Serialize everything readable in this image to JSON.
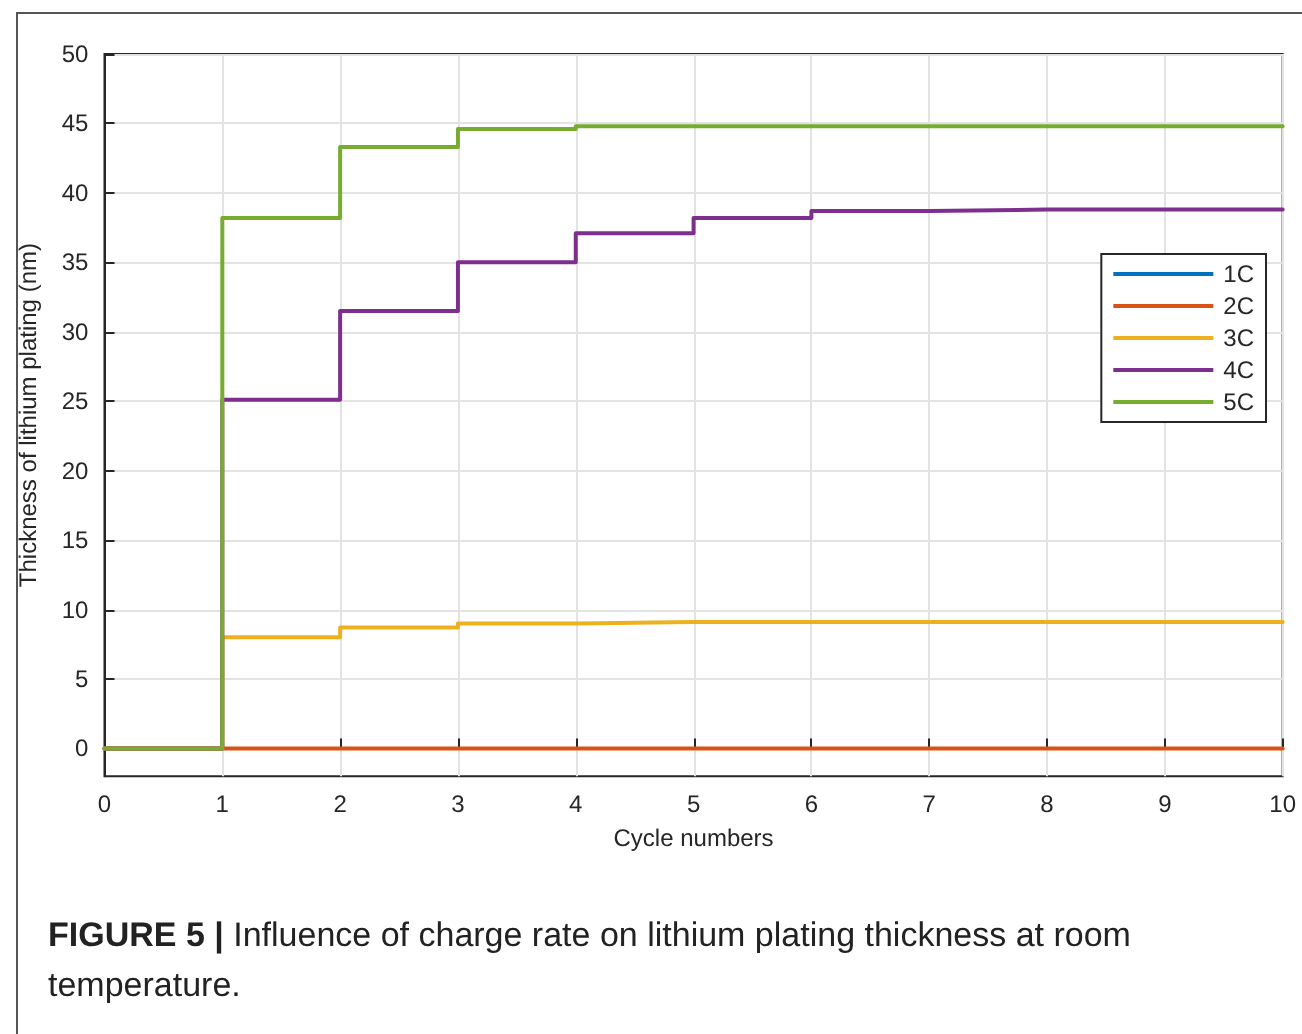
{
  "chart_data": {
    "type": "step",
    "xlabel": "Cycle numbers",
    "ylabel": "Thickness of lithium plating (nm)",
    "x": [
      0,
      1,
      2,
      3,
      4,
      5,
      6,
      7,
      8,
      9,
      10
    ],
    "series": [
      {
        "name": "1C",
        "color": "#0072bd",
        "values": [
          null,
          null,
          null,
          null,
          null,
          null,
          null,
          null,
          null,
          null,
          null
        ]
      },
      {
        "name": "2C",
        "color": "#d95319",
        "values": [
          0,
          0,
          0,
          0,
          0,
          0,
          0,
          0,
          0,
          0,
          0
        ]
      },
      {
        "name": "3C",
        "color": "#edb120",
        "values": [
          0,
          8.0,
          8.7,
          9.0,
          9.1,
          9.1,
          9.1,
          9.1,
          9.1,
          9.1,
          9.1
        ]
      },
      {
        "name": "4C",
        "color": "#7e2f8e",
        "values": [
          0,
          25.1,
          31.5,
          35.0,
          37.1,
          38.2,
          38.7,
          38.8,
          38.8,
          38.8,
          38.8
        ]
      },
      {
        "name": "5C",
        "color": "#77ac30",
        "values": [
          0,
          38.2,
          43.3,
          44.6,
          44.8,
          44.8,
          44.8,
          44.8,
          44.8,
          44.8,
          44.8
        ]
      }
    ],
    "xlim": [
      0,
      10
    ],
    "xticks": [
      0,
      1,
      2,
      3,
      4,
      5,
      6,
      7,
      8,
      9,
      10
    ],
    "ylim": [
      -2,
      50
    ],
    "yticks": [
      0,
      5,
      10,
      15,
      20,
      25,
      30,
      35,
      40,
      45,
      50
    ],
    "grid": true,
    "legend": "right",
    "marker": "none",
    "line_style": "solid",
    "annotations": [
      "FIGURE 5 | Influence of charge rate on lithium plating thickness at room temperature."
    ]
  }
}
